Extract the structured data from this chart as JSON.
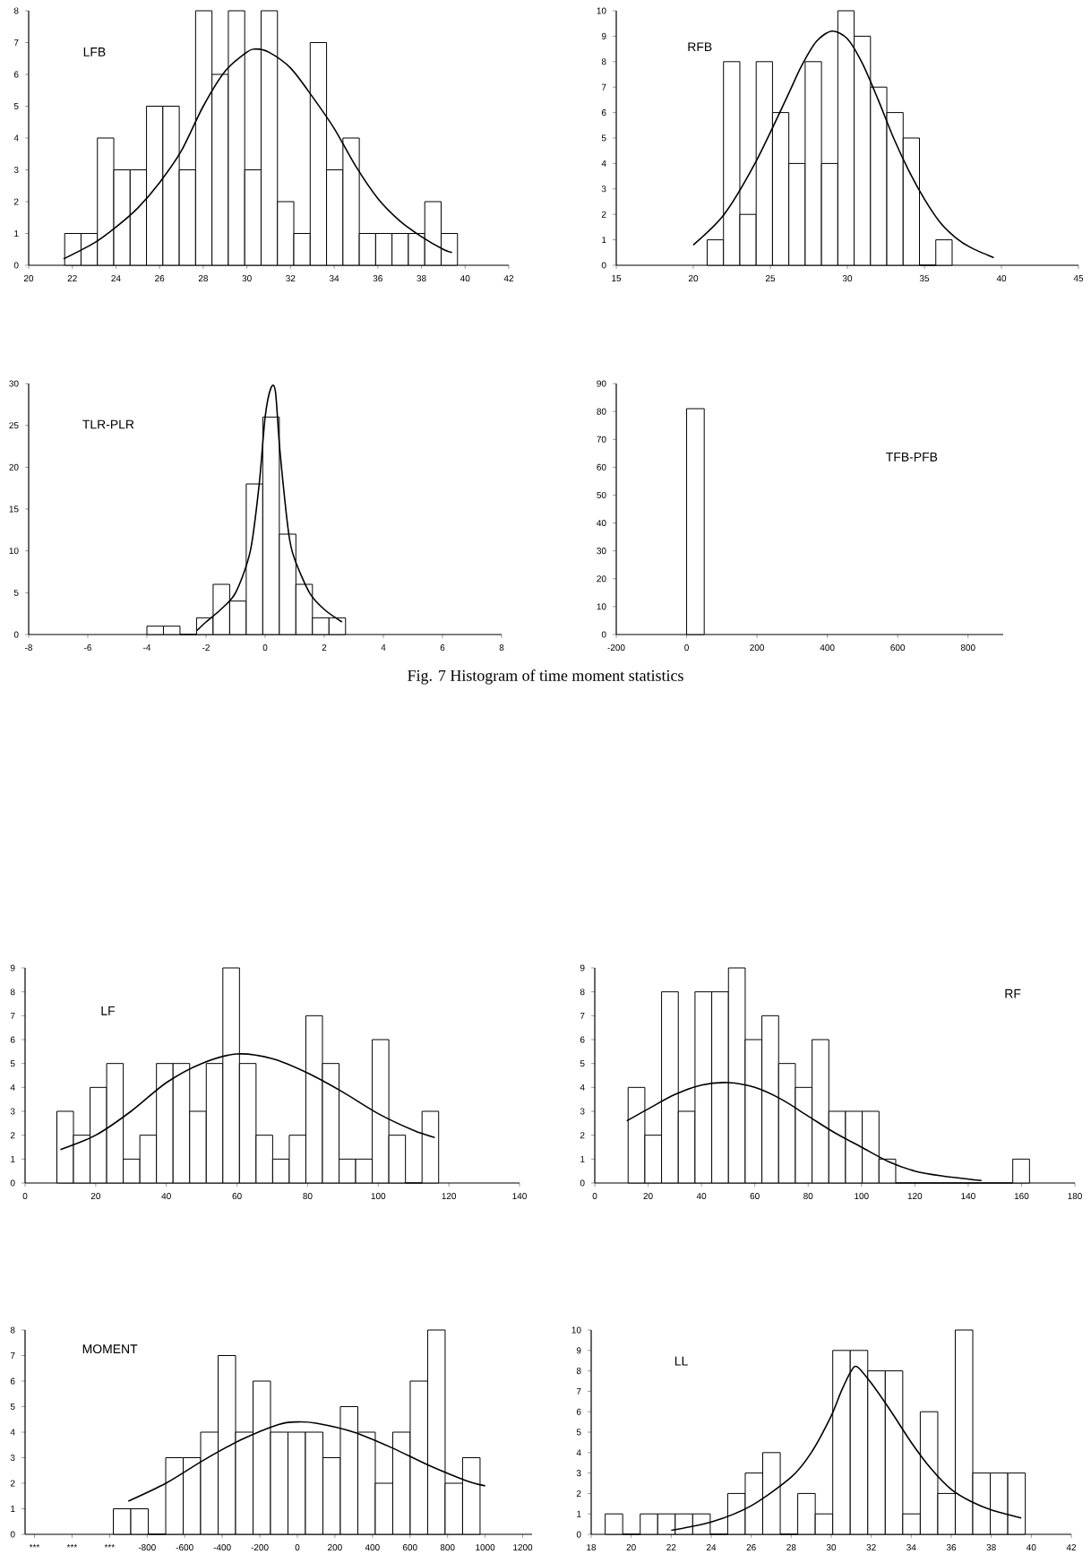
{
  "chart_data": [
    {
      "type": "histogram",
      "title": "LFB",
      "color": "#000000",
      "bins": [
        21.65,
        22.4,
        23.15,
        23.9,
        24.65,
        25.4,
        26.15,
        26.9,
        27.65,
        28.4,
        29.15,
        29.9,
        30.65,
        31.4,
        32.15,
        32.9,
        33.65,
        34.4,
        35.15,
        35.9,
        36.65,
        37.4,
        38.15,
        38.9,
        39.65
      ],
      "values": [
        1,
        1,
        4,
        3,
        3,
        5,
        5,
        3,
        8,
        6,
        8,
        3,
        8,
        2,
        1,
        7,
        3,
        4,
        1,
        1,
        1,
        1,
        2,
        1
      ],
      "series": [
        {
          "type": "line",
          "color": "#000000",
          "x": [
            21.6,
            23,
            24,
            25,
            26,
            27,
            28,
            29,
            30,
            30.4,
            31,
            32,
            33,
            34,
            35,
            36,
            37,
            38,
            39,
            39.4
          ],
          "values": [
            0.2,
            0.7,
            1.2,
            1.8,
            2.6,
            3.6,
            5.0,
            6.1,
            6.7,
            6.8,
            6.7,
            6.2,
            5.3,
            4.3,
            3.1,
            2.1,
            1.4,
            0.9,
            0.5,
            0.4
          ]
        }
      ],
      "xlim": [
        20,
        42
      ],
      "xticks": [
        20,
        22,
        24,
        26,
        28,
        30,
        32,
        34,
        36,
        38,
        40,
        42
      ],
      "ylim": [
        0,
        8
      ],
      "yticks": [
        0,
        1,
        2,
        3,
        4,
        5,
        6,
        7,
        8
      ]
    },
    {
      "type": "histogram",
      "title": "RFB",
      "color": "#000000",
      "bins": [
        20.9,
        21.96,
        23.02,
        24.08,
        25.14,
        26.2,
        27.26,
        28.32,
        29.38,
        30.44,
        31.5,
        32.56,
        33.62,
        34.68,
        35.74,
        36.8
      ],
      "values": [
        1,
        8,
        2,
        8,
        6,
        4,
        8,
        4,
        10,
        9,
        7,
        6,
        5,
        0,
        1
      ],
      "series": [
        {
          "type": "line",
          "color": "#000000",
          "x": [
            20,
            22,
            24,
            26,
            27,
            28,
            29,
            30,
            31,
            32,
            33,
            34,
            35,
            36,
            37,
            38,
            39.5
          ],
          "values": [
            0.8,
            2.0,
            4.0,
            6.5,
            7.8,
            8.8,
            9.2,
            8.9,
            7.9,
            6.5,
            5.0,
            3.7,
            2.6,
            1.7,
            1.1,
            0.7,
            0.3
          ]
        }
      ],
      "xlim": [
        15,
        45
      ],
      "xticks": [
        15,
        20,
        25,
        30,
        35,
        40,
        45
      ],
      "ylim": [
        0,
        10
      ],
      "yticks": [
        0,
        1,
        2,
        3,
        4,
        5,
        6,
        7,
        8,
        9,
        10
      ]
    },
    {
      "type": "histogram",
      "title": "TLR-PLR",
      "color": "#000000",
      "bins": [
        -4,
        -3.44,
        -2.88,
        -2.32,
        -1.76,
        -1.2,
        -0.64,
        -0.08,
        0.48,
        1.04,
        1.6,
        2.16,
        2.72
      ],
      "values": [
        1,
        1,
        0,
        2,
        6,
        4,
        18,
        26,
        12,
        6,
        2,
        2
      ],
      "series": [
        {
          "type": "line",
          "color": "#000000",
          "x": [
            -2.3,
            -2,
            -1.5,
            -1,
            -0.5,
            -0.2,
            0,
            0.2,
            0.35,
            0.5,
            0.8,
            1,
            1.5,
            2,
            2.6
          ],
          "values": [
            0.5,
            1.5,
            3,
            5,
            10,
            18,
            26,
            29.5,
            29,
            22,
            12,
            9,
            5,
            3,
            1.5
          ]
        }
      ],
      "xlim": [
        -8,
        8
      ],
      "xticks": [
        -8,
        -6,
        -4,
        -2,
        0,
        2,
        4,
        6,
        8
      ],
      "ylim": [
        0,
        30
      ],
      "yticks": [
        0,
        5,
        10,
        15,
        20,
        25,
        30
      ]
    },
    {
      "type": "histogram",
      "title": "TFB-PFB",
      "color": "#000000",
      "bins": [
        0,
        50
      ],
      "values": [
        81
      ],
      "xlim": [
        -200,
        900
      ],
      "xticks": [
        -200,
        0,
        200,
        400,
        600,
        800
      ],
      "ylim": [
        0,
        90
      ],
      "yticks": [
        0,
        10,
        20,
        30,
        40,
        50,
        60,
        70,
        80,
        90
      ],
      "annotations": [
        "Fig. 7 Histogram of time moment statistics"
      ]
    },
    {
      "type": "histogram",
      "title": "LF",
      "color": "#000000",
      "bins": [
        9,
        13.7,
        18.4,
        23.1,
        27.8,
        32.5,
        37.2,
        41.9,
        46.6,
        51.3,
        56,
        60.7,
        65.4,
        70.1,
        74.8,
        79.5,
        84.2,
        88.9,
        93.6,
        98.3,
        103,
        107.7,
        112.4,
        117.1
      ],
      "values": [
        3,
        2,
        4,
        5,
        1,
        2,
        5,
        5,
        3,
        5,
        9,
        5,
        2,
        1,
        2,
        7,
        5,
        1,
        1,
        6,
        2,
        0,
        3
      ],
      "series": [
        {
          "type": "line",
          "color": "#000000",
          "x": [
            10,
            20,
            30,
            40,
            50,
            60,
            70,
            80,
            90,
            100,
            110,
            116
          ],
          "values": [
            1.4,
            2.0,
            3.0,
            4.2,
            5.0,
            5.4,
            5.2,
            4.6,
            3.8,
            2.9,
            2.2,
            1.9
          ]
        }
      ],
      "xlim": [
        0,
        140
      ],
      "xticks": [
        0,
        20,
        40,
        60,
        80,
        100,
        120,
        140
      ],
      "ylim": [
        0,
        9
      ],
      "yticks": [
        0,
        1,
        2,
        3,
        4,
        5,
        6,
        7,
        8,
        9
      ]
    },
    {
      "type": "histogram",
      "title": "RF",
      "color": "#000000",
      "bins": [
        12.5,
        18.77,
        25.04,
        31.31,
        37.58,
        43.85,
        50.12,
        56.39,
        62.66,
        68.93,
        75.2,
        81.47,
        87.74,
        94.01,
        100.28,
        106.55,
        112.82,
        119.09,
        125.36,
        131.63,
        137.9,
        144.17,
        150.44,
        156.71,
        162.98
      ],
      "values": [
        4,
        2,
        8,
        3,
        8,
        8,
        9,
        6,
        7,
        5,
        4,
        6,
        3,
        3,
        3,
        1,
        0,
        0,
        0,
        0,
        0,
        0,
        0,
        1
      ],
      "series": [
        {
          "type": "line",
          "color": "#000000",
          "x": [
            12,
            20,
            30,
            40,
            50,
            60,
            70,
            80,
            90,
            100,
            110,
            120,
            130,
            145
          ],
          "values": [
            2.6,
            3.1,
            3.7,
            4.1,
            4.2,
            4.0,
            3.5,
            2.8,
            2.1,
            1.5,
            0.9,
            0.5,
            0.3,
            0.1
          ]
        }
      ],
      "xlim": [
        0,
        180
      ],
      "xticks": [
        0,
        20,
        40,
        60,
        80,
        100,
        120,
        140,
        160,
        180
      ],
      "ylim": [
        0,
        9
      ],
      "yticks": [
        0,
        1,
        2,
        3,
        4,
        5,
        6,
        7,
        8,
        9
      ]
    },
    {
      "type": "histogram",
      "title": "MOMENT",
      "color": "#000000",
      "bins": [
        -980,
        -887,
        -794,
        -701,
        -608,
        -515,
        -422,
        -329,
        -236,
        -143,
        -50,
        43,
        136,
        229,
        322,
        415,
        508,
        601,
        694,
        787,
        880,
        973
      ],
      "values": [
        1,
        1,
        0,
        3,
        3,
        4,
        7,
        4,
        6,
        4,
        4,
        4,
        3,
        5,
        4,
        2,
        4,
        6,
        8,
        2,
        3
      ],
      "series": [
        {
          "type": "line",
          "color": "#000000",
          "x": [
            -900,
            -700,
            -500,
            -300,
            -100,
            0,
            100,
            300,
            500,
            700,
            900,
            1000
          ],
          "values": [
            1.3,
            2.0,
            2.9,
            3.7,
            4.3,
            4.4,
            4.35,
            4.0,
            3.4,
            2.7,
            2.1,
            1.9
          ]
        }
      ],
      "xlim": [
        -1450,
        1250
      ],
      "xticks": [
        {
          "value": -1400,
          "label": "***"
        },
        {
          "value": -1200,
          "label": "***"
        },
        {
          "value": -1000,
          "label": "***"
        },
        -800,
        -600,
        -400,
        -200,
        0,
        200,
        400,
        600,
        800,
        1000,
        1200
      ],
      "ylim": [
        0,
        8
      ],
      "yticks": [
        0,
        1,
        2,
        3,
        4,
        5,
        6,
        7,
        8
      ]
    },
    {
      "type": "histogram",
      "title": "LL",
      "color": "#000000",
      "bins": [
        18.7,
        19.575,
        20.45,
        21.325,
        22.2,
        23.075,
        23.95,
        24.825,
        25.7,
        26.575,
        27.45,
        28.325,
        29.2,
        30.075,
        30.95,
        31.825,
        32.7,
        33.575,
        34.45,
        35.325,
        36.2,
        37.075,
        37.95,
        38.825,
        39.7
      ],
      "values": [
        1,
        0,
        1,
        1,
        1,
        1,
        0,
        2,
        3,
        4,
        0,
        2,
        1,
        9,
        9,
        8,
        8,
        1,
        6,
        2,
        10,
        3,
        3,
        3
      ],
      "series": [
        {
          "type": "line",
          "color": "#000000",
          "x": [
            22,
            24,
            26,
            28,
            29,
            30,
            30.5,
            31,
            31.3,
            32,
            33,
            34,
            35,
            36,
            37,
            38,
            39.5
          ],
          "values": [
            0.2,
            0.6,
            1.4,
            2.8,
            4.0,
            5.8,
            7.0,
            8.0,
            8.2,
            7.4,
            6.0,
            4.5,
            3.2,
            2.2,
            1.6,
            1.2,
            0.8
          ]
        }
      ],
      "xlim": [
        18,
        42
      ],
      "xticks": [
        18,
        20,
        22,
        24,
        26,
        28,
        30,
        32,
        34,
        36,
        38,
        40,
        42
      ],
      "ylim": [
        0,
        10
      ],
      "yticks": [
        0,
        1,
        2,
        3,
        4,
        5,
        6,
        7,
        8,
        9,
        10
      ]
    }
  ]
}
